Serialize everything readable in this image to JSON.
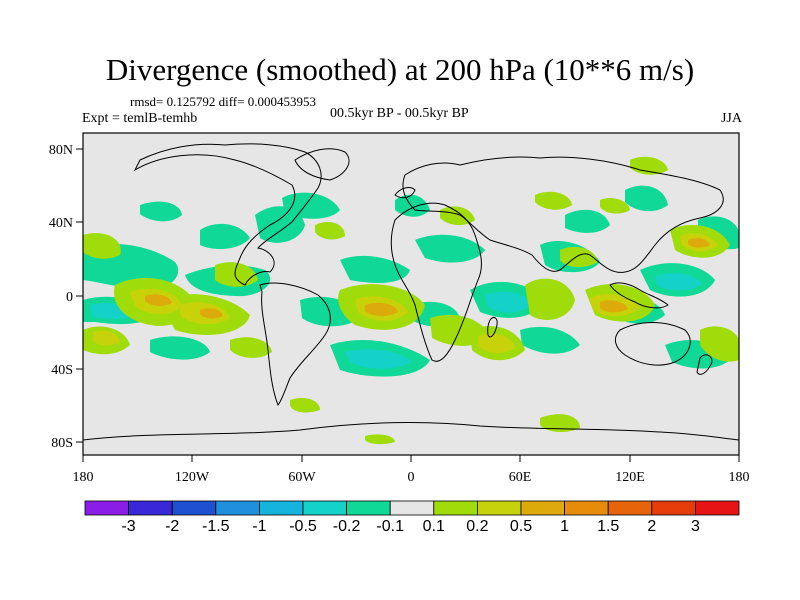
{
  "title": "Divergence (smoothed) at 200 hPa (10**6 m/s)",
  "stats_line": "rmsd= 0.125792 diff= 0.000453953",
  "expt_line": "Expt = temlB-temhb",
  "period_line": "00.5kyr BP - 00.5kyr BP",
  "season": "JJA",
  "axes": {
    "x_ticks": [
      "180",
      "120W",
      "60W",
      "0",
      "60E",
      "120E",
      "180"
    ],
    "y_ticks": [
      "80N",
      "40N",
      "0",
      "40S",
      "80S"
    ]
  },
  "colorbar": {
    "labels": [
      "-3",
      "-2",
      "-1.5",
      "-1",
      "-0.5",
      "-0.2",
      "-0.1",
      "0.1",
      "0.2",
      "0.5",
      "1",
      "1.5",
      "2",
      "3"
    ],
    "colors": [
      "#8a1ee6",
      "#3a28d8",
      "#1e50d0",
      "#1e90dc",
      "#14b4dc",
      "#14d2c8",
      "#10d896",
      "#e6e6e6",
      "#a0dc0a",
      "#c8d20a",
      "#dcaa0a",
      "#e68c0a",
      "#e6640a",
      "#e63c0a",
      "#e61414"
    ]
  },
  "palette": {
    "land_line": "#000000",
    "ocean_bg": "#e6e6e6",
    "pos_weak": "#a0dc0a",
    "pos_mid": "#c8d20a",
    "pos_strong": "#dcaa0a",
    "neg_weak": "#10d896",
    "neg_mid": "#14d2c8"
  }
}
